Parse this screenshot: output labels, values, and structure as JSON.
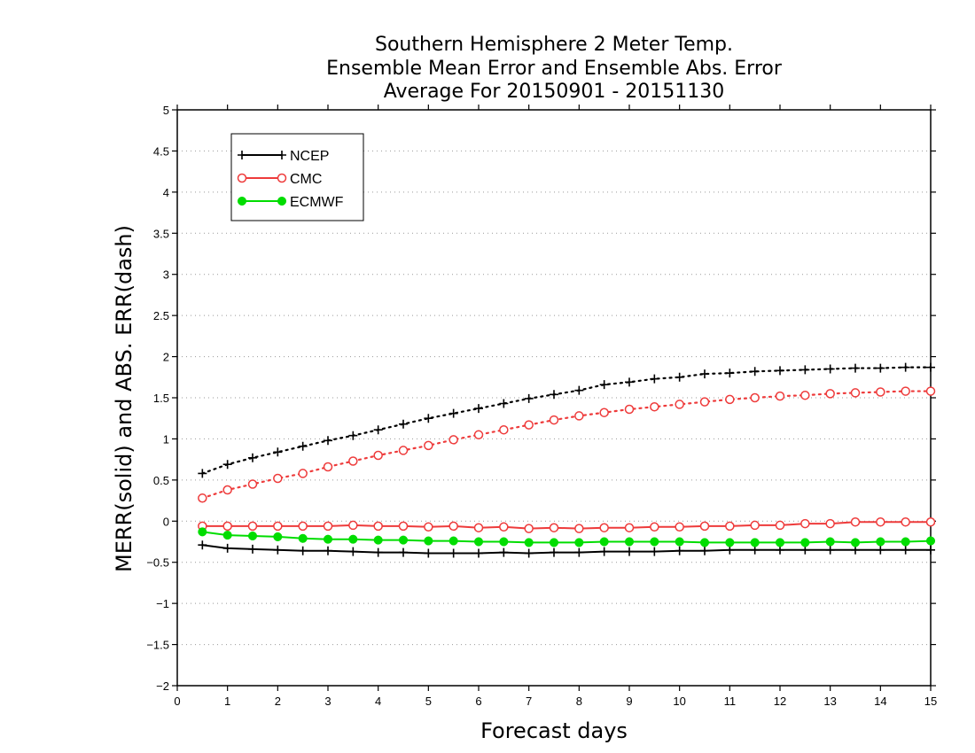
{
  "chart_data": {
    "type": "line",
    "title": [
      "Southern Hemisphere 2 Meter Temp.",
      "Ensemble Mean Error and Ensemble Abs. Error",
      "Average For 20150901 - 20151130"
    ],
    "xlabel": "Forecast days",
    "ylabel": "MERR(solid) and ABS. ERR(dash)",
    "xlim": [
      0,
      15
    ],
    "ylim": [
      -2,
      5
    ],
    "xticks": [
      "0",
      "1",
      "2",
      "3",
      "4",
      "5",
      "6",
      "7",
      "8",
      "9",
      "10",
      "11",
      "12",
      "13",
      "14",
      "15"
    ],
    "yticks": [
      "5",
      "4.5",
      "4",
      "3.5",
      "3",
      "2.5",
      "2",
      "1.5",
      "1",
      "0.5",
      "0",
      "−0.5",
      "−1",
      "−1.5",
      "−2"
    ],
    "grid": "horizontal dotted",
    "legend_position": "top-left",
    "x": [
      0.5,
      1,
      1.5,
      2,
      2.5,
      3,
      3.5,
      4,
      4.5,
      5,
      5.5,
      6,
      6.5,
      7,
      7.5,
      8,
      8.5,
      9,
      9.5,
      10,
      10.5,
      11,
      11.5,
      12,
      12.5,
      13,
      13.5,
      14,
      14.5,
      15
    ],
    "series": [
      {
        "name": "NCEP",
        "color": "#000000",
        "marker": "plus",
        "merr": [
          -0.29,
          -0.33,
          -0.34,
          -0.35,
          -0.36,
          -0.36,
          -0.37,
          -0.38,
          -0.38,
          -0.39,
          -0.39,
          -0.39,
          -0.38,
          -0.39,
          -0.38,
          -0.38,
          -0.37,
          -0.37,
          -0.37,
          -0.36,
          -0.36,
          -0.35,
          -0.35,
          -0.35,
          -0.35,
          -0.35,
          -0.35,
          -0.35,
          -0.35,
          -0.35
        ],
        "abs_err": [
          0.58,
          0.69,
          0.77,
          0.84,
          0.91,
          0.98,
          1.04,
          1.11,
          1.18,
          1.25,
          1.31,
          1.37,
          1.43,
          1.49,
          1.54,
          1.59,
          1.66,
          1.69,
          1.73,
          1.75,
          1.79,
          1.8,
          1.82,
          1.83,
          1.84,
          1.85,
          1.86,
          1.86,
          1.87,
          1.87
        ]
      },
      {
        "name": "CMC",
        "color": "#ee3b3b",
        "marker": "open-circle",
        "merr": [
          -0.06,
          -0.06,
          -0.06,
          -0.06,
          -0.06,
          -0.06,
          -0.05,
          -0.06,
          -0.06,
          -0.07,
          -0.06,
          -0.08,
          -0.07,
          -0.09,
          -0.08,
          -0.09,
          -0.08,
          -0.08,
          -0.07,
          -0.07,
          -0.06,
          -0.06,
          -0.05,
          -0.05,
          -0.03,
          -0.03,
          -0.01,
          -0.01,
          -0.01,
          -0.01
        ],
        "abs_err": [
          0.28,
          0.38,
          0.45,
          0.52,
          0.58,
          0.66,
          0.73,
          0.8,
          0.86,
          0.92,
          0.99,
          1.05,
          1.11,
          1.17,
          1.23,
          1.28,
          1.32,
          1.36,
          1.39,
          1.42,
          1.45,
          1.48,
          1.5,
          1.52,
          1.53,
          1.55,
          1.56,
          1.57,
          1.58,
          1.58
        ]
      },
      {
        "name": "ECMWF",
        "color": "#00dd00",
        "marker": "filled-circle",
        "merr": [
          -0.13,
          -0.17,
          -0.18,
          -0.19,
          -0.21,
          -0.22,
          -0.22,
          -0.23,
          -0.23,
          -0.24,
          -0.24,
          -0.25,
          -0.25,
          -0.26,
          -0.26,
          -0.26,
          -0.25,
          -0.25,
          -0.25,
          -0.25,
          -0.26,
          -0.26,
          -0.26,
          -0.26,
          -0.26,
          -0.25,
          -0.26,
          -0.25,
          -0.25,
          -0.24
        ]
      }
    ]
  }
}
